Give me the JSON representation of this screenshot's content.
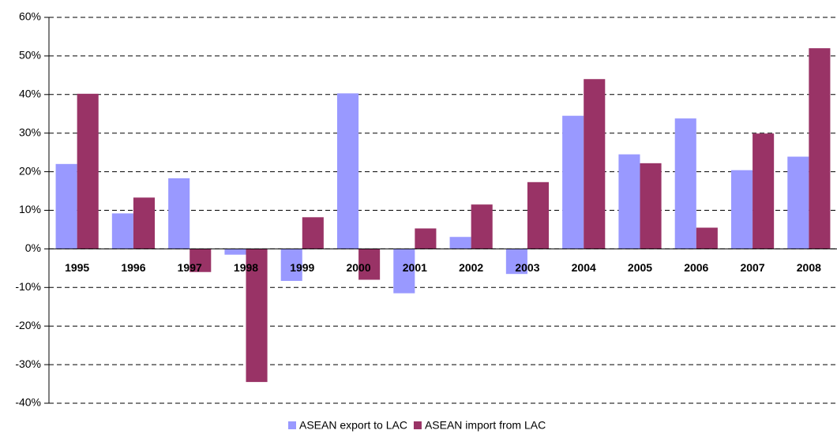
{
  "chart_data": {
    "type": "bar",
    "categories": [
      "1995",
      "1996",
      "1997",
      "1998",
      "1999",
      "2000",
      "2001",
      "2002",
      "2003",
      "2004",
      "2005",
      "2006",
      "2007",
      "2008"
    ],
    "series": [
      {
        "name": "ASEAN export to LAC",
        "color": "#9999ff",
        "values": [
          22,
          9.2,
          18.3,
          -1.5,
          -8.3,
          40.3,
          -11.5,
          3.1,
          -6.5,
          34.5,
          24.5,
          33.8,
          20.4,
          23.9
        ]
      },
      {
        "name": "ASEAN import from LAC",
        "color": "#993366",
        "values": [
          40.2,
          13.3,
          -6,
          -34.5,
          8.2,
          -8,
          5.3,
          11.5,
          17.3,
          44,
          22.2,
          5.5,
          29.9,
          52
        ]
      }
    ],
    "ylim": [
      -40,
      60
    ],
    "yticks": [
      {
        "value": -40,
        "label": "-40%"
      },
      {
        "value": -30,
        "label": "-30%"
      },
      {
        "value": -20,
        "label": "-20%"
      },
      {
        "value": -10,
        "label": "-10%"
      },
      {
        "value": 0,
        "label": "0%"
      },
      {
        "value": 10,
        "label": "10%"
      },
      {
        "value": 20,
        "label": "20%"
      },
      {
        "value": 30,
        "label": "30%"
      },
      {
        "value": 40,
        "label": "40%"
      },
      {
        "value": 50,
        "label": "50%"
      },
      {
        "value": 60,
        "label": "60%"
      }
    ],
    "grid": true,
    "legend": "bottom"
  }
}
